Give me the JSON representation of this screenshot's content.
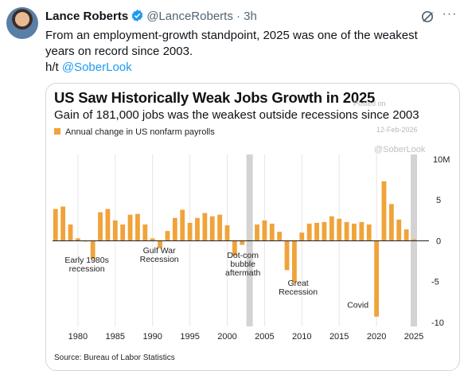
{
  "tweet": {
    "author_name": "Lance Roberts",
    "handle_time": "@LanceRoberts · 3h",
    "text_line1": "From an employment-growth standpoint, 2025 was one of the weakest",
    "text_line2": "years on record since 2003.",
    "hat_tip_prefix": "h/t ",
    "hat_tip_mention": "@SoberLook",
    "icons": [
      "verified-badge-icon",
      "grok-icon",
      "more-icon"
    ],
    "colors": {
      "verified": "#1d9bf0",
      "mention": "#1d9bf0",
      "bar": "#f0a33a",
      "recession_band": "#d3d3d3"
    }
  },
  "card": {
    "watermark_posted": "Posted on",
    "watermark_date": "12-Feb-2026",
    "watermark_handle": "@SoberLook",
    "source": "Source: Bureau of Labor Statistics"
  },
  "chart_data": {
    "type": "bar",
    "title": "US Saw Historically Weak Jobs Growth in 2025",
    "subtitle": "Gain of 181,000 jobs was the weakest outside recessions since 2003",
    "legend": [
      "Annual change in US nonfarm payrolls"
    ],
    "y_unit_label": "10M",
    "x_ticks": [
      "1980",
      "1985",
      "1990",
      "1995",
      "2000",
      "2005",
      "2010",
      "2015",
      "2020",
      "2025"
    ],
    "y_ticks": [
      "5",
      "0",
      "-5",
      "-10"
    ],
    "ylim": [
      -10.5,
      10
    ],
    "xlim": [
      1976.6,
      2026.6
    ],
    "grid": "vertical",
    "recession_bands": [
      2003,
      2025
    ],
    "annotations": [
      {
        "text": [
          "Early 1980s",
          "recession"
        ],
        "x": 1981.2,
        "y": -2.7
      },
      {
        "text": [
          "Gulf War",
          "Recession"
        ],
        "x": 1990.9,
        "y": -1.5
      },
      {
        "text": [
          "Dot-com",
          "bubble",
          "aftermath"
        ],
        "x": 2002.1,
        "y": -2.1
      },
      {
        "text": [
          "Great",
          "Recession"
        ],
        "x": 2009.5,
        "y": -5.5
      },
      {
        "text": [
          "Covid"
        ],
        "x": 2017.5,
        "y": -8.2
      }
    ],
    "years": [
      1977,
      1978,
      1979,
      1980,
      1981,
      1982,
      1983,
      1984,
      1985,
      1986,
      1987,
      1988,
      1989,
      1990,
      1991,
      1992,
      1993,
      1994,
      1995,
      1996,
      1997,
      1998,
      1999,
      2000,
      2001,
      2002,
      2003,
      2004,
      2005,
      2006,
      2007,
      2008,
      2009,
      2010,
      2011,
      2012,
      2013,
      2014,
      2015,
      2016,
      2017,
      2018,
      2019,
      2020,
      2021,
      2022,
      2023,
      2024,
      2025
    ],
    "values": [
      3.9,
      4.2,
      2.0,
      0.3,
      -0.1,
      -2.2,
      3.5,
      3.9,
      2.5,
      2.0,
      3.2,
      3.3,
      2.0,
      0.3,
      -0.9,
      1.2,
      2.8,
      3.8,
      2.2,
      2.8,
      3.4,
      3.0,
      3.2,
      1.9,
      -1.8,
      -0.5,
      0.1,
      2.0,
      2.5,
      2.1,
      1.1,
      -3.6,
      -5.1,
      1.0,
      2.1,
      2.2,
      2.3,
      3.0,
      2.7,
      2.3,
      2.1,
      2.3,
      2.0,
      -9.3,
      7.3,
      4.5,
      2.6,
      1.4,
      0.2
    ]
  }
}
